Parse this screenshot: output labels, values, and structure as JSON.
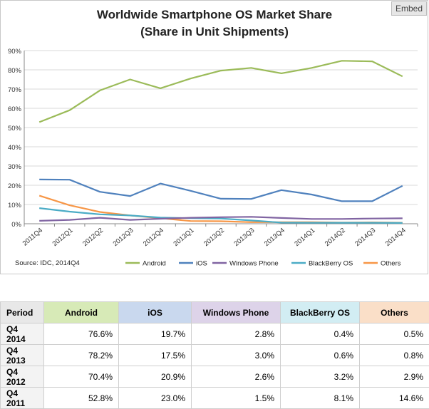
{
  "embed_label": "Embed",
  "chart_data": {
    "type": "line",
    "title": [
      "Worldwide Smartphone OS Market Share",
      "(Share in Unit Shipments)"
    ],
    "source": "Source: IDC, 2014Q4",
    "ylim": [
      0,
      90
    ],
    "yticks": [
      "0%",
      "10%",
      "20%",
      "30%",
      "40%",
      "50%",
      "60%",
      "70%",
      "80%",
      "90%"
    ],
    "ytick_values": [
      0,
      10,
      20,
      30,
      40,
      50,
      60,
      70,
      80,
      90
    ],
    "grid": true,
    "legend_position": "bottom",
    "categories": [
      "2011Q4",
      "2012Q1",
      "2012Q2",
      "2012Q3",
      "2012Q4",
      "2013Q1",
      "2013Q2",
      "2013Q3",
      "2013Q4",
      "2014Q1",
      "2014Q2",
      "2014Q3",
      "2014Q4"
    ],
    "series": [
      {
        "name": "Android",
        "color": "#9bbb59",
        "values": [
          52.8,
          59.0,
          69.3,
          75.0,
          70.4,
          75.5,
          79.6,
          81.0,
          78.2,
          81.0,
          84.7,
          84.4,
          76.6
        ]
      },
      {
        "name": "iOS",
        "color": "#4f81bd",
        "values": [
          23.0,
          22.9,
          16.6,
          14.4,
          20.9,
          17.1,
          13.0,
          12.9,
          17.5,
          15.2,
          11.7,
          11.7,
          19.7
        ]
      },
      {
        "name": "Windows Phone",
        "color": "#8064a2",
        "values": [
          1.5,
          2.0,
          3.1,
          2.0,
          2.6,
          3.1,
          3.4,
          3.6,
          3.0,
          2.5,
          2.5,
          2.7,
          2.8
        ]
      },
      {
        "name": "BlackBerry OS",
        "color": "#4bacc6",
        "values": [
          8.1,
          6.3,
          4.9,
          4.3,
          3.2,
          2.9,
          2.7,
          1.7,
          0.6,
          0.5,
          0.5,
          0.5,
          0.4
        ]
      },
      {
        "name": "Others",
        "color": "#f79646",
        "values": [
          14.6,
          9.6,
          6.1,
          4.3,
          2.9,
          1.4,
          1.3,
          0.8,
          0.8,
          0.8,
          0.6,
          0.7,
          0.5
        ]
      }
    ]
  },
  "table": {
    "headers": [
      {
        "label": "Period",
        "bg": "#e8e8e8"
      },
      {
        "label": "Android",
        "bg": "#d7eab7"
      },
      {
        "label": "iOS",
        "bg": "#c9d8ee"
      },
      {
        "label": "Windows Phone",
        "bg": "#ddd3e9"
      },
      {
        "label": "BlackBerry OS",
        "bg": "#d2edf3"
      },
      {
        "label": "Others",
        "bg": "#fadfc8"
      }
    ],
    "rows": [
      {
        "period": "Q4 2014",
        "values": [
          "76.6%",
          "19.7%",
          "2.8%",
          "0.4%",
          "0.5%"
        ]
      },
      {
        "period": "Q4 2013",
        "values": [
          "78.2%",
          "17.5%",
          "3.0%",
          "0.6%",
          "0.8%"
        ]
      },
      {
        "period": "Q4 2012",
        "values": [
          "70.4%",
          "20.9%",
          "2.6%",
          "3.2%",
          "2.9%"
        ]
      },
      {
        "period": "Q4 2011",
        "values": [
          "52.8%",
          "23.0%",
          "1.5%",
          "8.1%",
          "14.6%"
        ]
      }
    ]
  }
}
